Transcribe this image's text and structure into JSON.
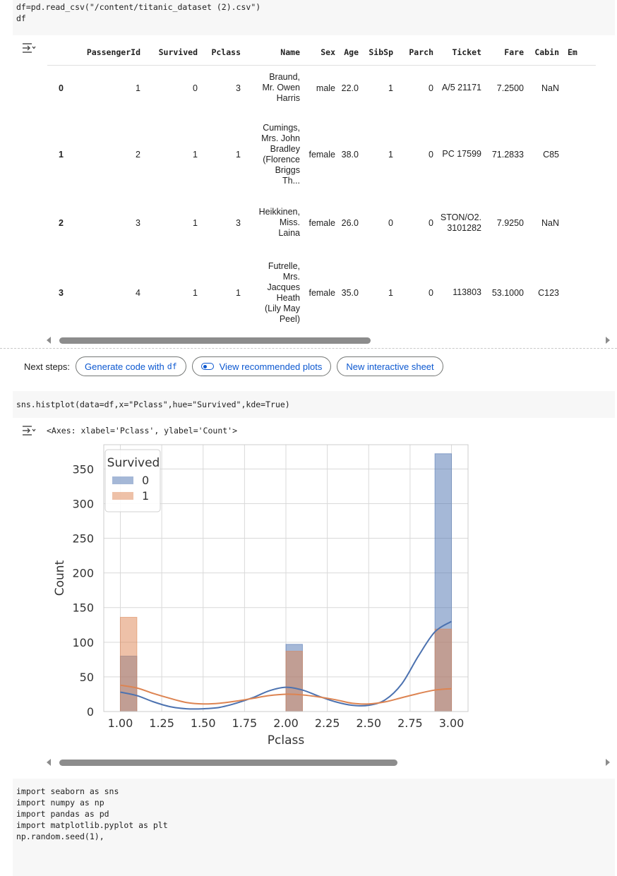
{
  "cells": {
    "read_csv": {
      "lines": [
        "df=pd.read_csv(\"/content/titanic_dataset (2).csv\")",
        "df"
      ]
    },
    "histplot": {
      "line": "sns.histplot(data=df,x=\"Pclass\",hue=\"Survived\",kde=True)",
      "output_repr": "<Axes: xlabel='Pclass', ylabel='Count'>"
    },
    "imports": {
      "lines": [
        "import seaborn as sns",
        "import numpy as np",
        "import pandas as pd",
        "import matplotlib.pyplot as plt",
        "np.random.seed(1),"
      ]
    }
  },
  "dataframe": {
    "columns": [
      "",
      "PassengerId",
      "Survived",
      "Pclass",
      "Name",
      "Sex",
      "Age",
      "SibSp",
      "Parch",
      "Ticket",
      "Fare",
      "Cabin",
      "Em"
    ],
    "rows": [
      [
        "0",
        "1",
        "0",
        "3",
        "Braund, Mr. Owen Harris",
        "male",
        "22.0",
        "1",
        "0",
        "A/5 21171",
        "7.2500",
        "NaN"
      ],
      [
        "1",
        "2",
        "1",
        "1",
        "Cumings, Mrs. John Bradley (Florence Briggs Th...",
        "female",
        "38.0",
        "1",
        "0",
        "PC 17599",
        "71.2833",
        "C85"
      ],
      [
        "2",
        "3",
        "1",
        "3",
        "Heikkinen, Miss. Laina",
        "female",
        "26.0",
        "0",
        "0",
        "STON/O2. 3101282",
        "7.9250",
        "NaN"
      ],
      [
        "3",
        "4",
        "1",
        "1",
        "Futrelle, Mrs. Jacques Heath (Lily May Peel)",
        "female",
        "35.0",
        "1",
        "0",
        "113803",
        "53.1000",
        "C123"
      ]
    ],
    "name_lines": [
      [
        "Braund,",
        "Mr. Owen",
        "Harris"
      ],
      [
        "Cumings,",
        "Mrs. John",
        "Bradley",
        "(Florence",
        "Briggs",
        "Th..."
      ],
      [
        "Heikkinen,",
        "Miss.",
        "Laina"
      ],
      [
        "Futrelle,",
        "Mrs.",
        "Jacques",
        "Heath",
        "(Lily May",
        "Peel)"
      ]
    ],
    "ticket_lines": [
      [
        "A/5 21171"
      ],
      [
        "PC 17599"
      ],
      [
        "STON/O2.",
        "3101282"
      ],
      [
        "113803"
      ]
    ],
    "scroll_fraction": 0.58
  },
  "next_steps": {
    "label": "Next steps:",
    "chip1_text": "Generate code with",
    "chip1_code": "df",
    "chip2": "View recommended plots",
    "chip3": "New interactive sheet"
  },
  "icons": {
    "output_toggle": "collapse-output-icon",
    "recommended_plots": "toggle-icon",
    "scroll_left": "arrow-left-icon",
    "scroll_right": "arrow-right-icon"
  },
  "colors": {
    "series0": "#4c72b0",
    "series1": "#dd8452",
    "grid": "#d9d9d9",
    "chip_text": "#0b57d0",
    "cell_bg": "#f7f7f7"
  },
  "chart_scroll_fraction": 0.63,
  "chart_data": {
    "type": "bar",
    "xlabel": "Pclass",
    "ylabel": "Count",
    "xlim": [
      0.9,
      3.1
    ],
    "ylim": [
      0,
      385
    ],
    "xticks": [
      "1.00",
      "1.25",
      "1.50",
      "1.75",
      "2.00",
      "2.25",
      "2.50",
      "2.75",
      "3.00"
    ],
    "yticks": [
      "0",
      "50",
      "100",
      "150",
      "200",
      "250",
      "300",
      "350"
    ],
    "bin_width": 0.1,
    "legend": {
      "title": "Survived",
      "placement": "top-left"
    },
    "series": [
      {
        "name": "0",
        "bins": [
          1.0,
          2.0,
          2.9
        ],
        "values": [
          80,
          97,
          372
        ],
        "kde": [
          [
            1.0,
            28
          ],
          [
            1.1,
            23
          ],
          [
            1.2,
            14
          ],
          [
            1.3,
            7
          ],
          [
            1.4,
            4
          ],
          [
            1.5,
            4
          ],
          [
            1.6,
            6
          ],
          [
            1.7,
            12
          ],
          [
            1.8,
            20
          ],
          [
            1.9,
            30
          ],
          [
            2.0,
            35
          ],
          [
            2.1,
            31
          ],
          [
            2.2,
            22
          ],
          [
            2.3,
            14
          ],
          [
            2.4,
            9
          ],
          [
            2.5,
            9
          ],
          [
            2.6,
            17
          ],
          [
            2.7,
            40
          ],
          [
            2.8,
            80
          ],
          [
            2.9,
            115
          ],
          [
            3.0,
            130
          ]
        ]
      },
      {
        "name": "1",
        "bins": [
          1.0,
          2.0,
          2.9
        ],
        "values": [
          136,
          87,
          119
        ],
        "kde": [
          [
            1.0,
            38
          ],
          [
            1.1,
            34
          ],
          [
            1.2,
            26
          ],
          [
            1.3,
            19
          ],
          [
            1.4,
            13
          ],
          [
            1.5,
            11
          ],
          [
            1.6,
            12
          ],
          [
            1.7,
            15
          ],
          [
            1.8,
            19
          ],
          [
            1.9,
            23
          ],
          [
            2.0,
            25
          ],
          [
            2.1,
            24
          ],
          [
            2.2,
            21
          ],
          [
            2.3,
            17
          ],
          [
            2.4,
            12
          ],
          [
            2.5,
            11
          ],
          [
            2.6,
            14
          ],
          [
            2.7,
            20
          ],
          [
            2.8,
            26
          ],
          [
            2.9,
            31
          ],
          [
            3.0,
            33
          ]
        ]
      }
    ]
  }
}
